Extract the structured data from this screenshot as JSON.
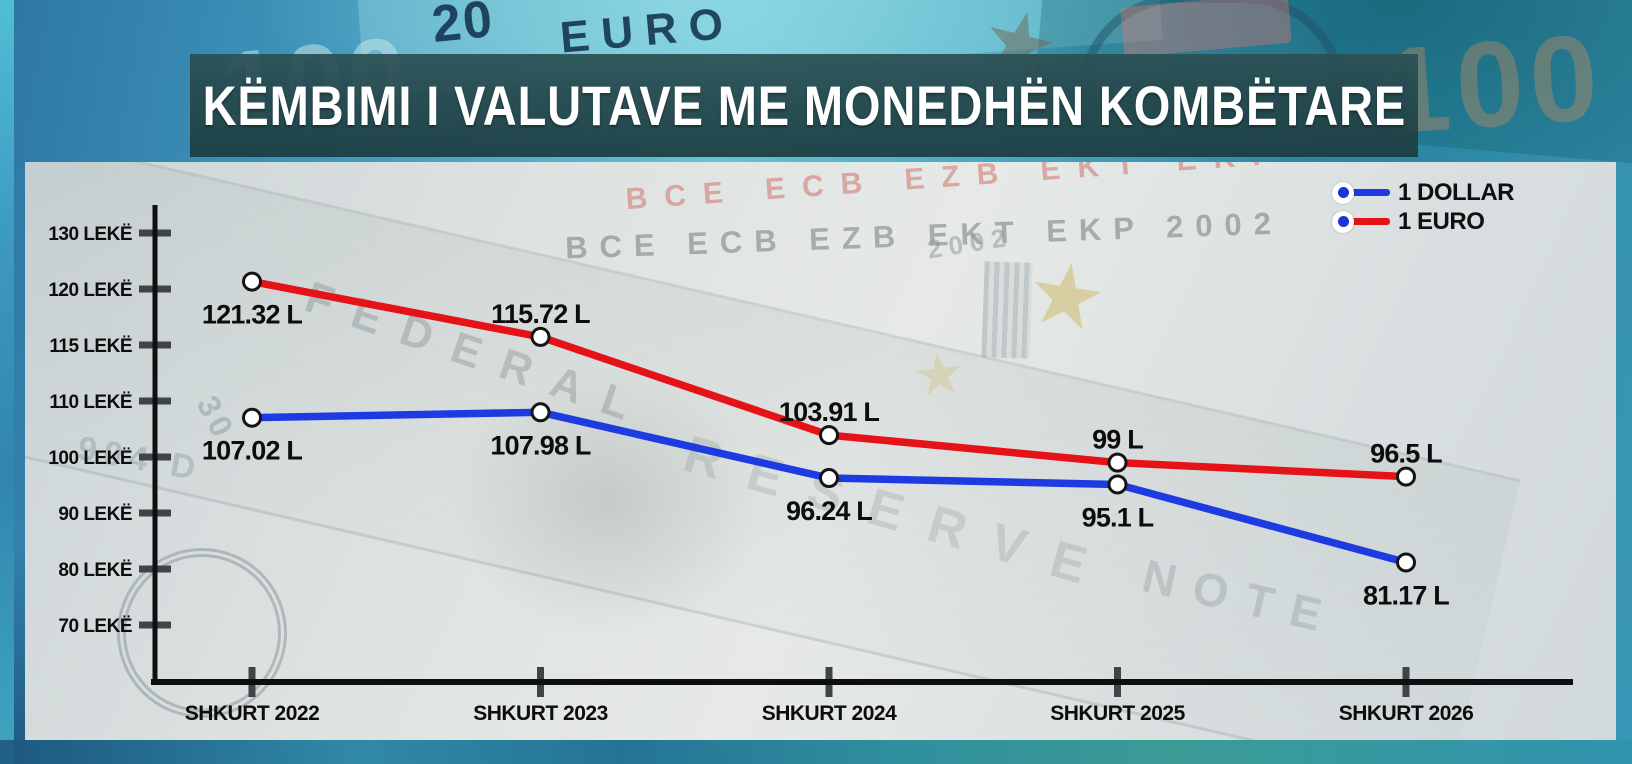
{
  "header": {
    "title": "KËMBIMI I VALUTAVE ME MONEDHËN KOMBËTARE"
  },
  "legend": {
    "position": "top-right",
    "marker_dot_color": "#1c33d6",
    "items": [
      {
        "label": "1 DOLLAR",
        "color": "#1d3be0"
      },
      {
        "label": "1 EURO",
        "color": "#e51318"
      }
    ]
  },
  "chart_data": {
    "type": "line",
    "title": "KËMBIMI I VALUTAVE ME MONEDHËN KOMBËTARE",
    "unit": "LEKË",
    "categories": [
      "SHKURT 2022",
      "SHKURT 2023",
      "SHKURT 2024",
      "SHKURT 2025",
      "SHKURT 2026"
    ],
    "series": [
      {
        "name": "1 DOLLAR",
        "color": "#1d3be0",
        "values": [
          107.02,
          107.98,
          96.24,
          95.1,
          81.17
        ],
        "point_labels": [
          "107.02 L",
          "107.98 L",
          "96.24 L",
          "95.1 L",
          "81.17 L"
        ],
        "label_placement": [
          "below",
          "below",
          "below",
          "below",
          "below"
        ]
      },
      {
        "name": "1 EURO",
        "color": "#e51318",
        "values": [
          121.32,
          115.72,
          103.91,
          99,
          96.5
        ],
        "point_labels": [
          "121.32 L",
          "115.72 L",
          "103.91 L",
          "99 L",
          "96.5 L"
        ],
        "label_placement": [
          "below",
          "above",
          "above",
          "above",
          "above"
        ]
      }
    ],
    "y_axis": {
      "tick_values": [
        130,
        120,
        115,
        110,
        100,
        90,
        80,
        70
      ],
      "tick_labels": [
        "130 LEKË",
        "120 LEKË",
        "115 LEKË",
        "110 LEKË",
        "100 LEKË",
        "90 LEKË",
        "80 LEKË",
        "70 LEKË"
      ],
      "scale_note": "ticks drawn equally spaced (non-linear value scale as in original)"
    },
    "grid": false,
    "legend_position": "top-right",
    "marker_style": {
      "fill": "#ffffff",
      "stroke": "#141414"
    }
  },
  "background": {
    "watermarks": {
      "bce_row_red": "BCE ECB EZB EKT EKP",
      "bce_row_gray": "BCE ECB EZB EKT EKP 2002",
      "year": "2002",
      "federal": "FEDERAL",
      "reserve": "RESERVE",
      "note": "NOTE",
      "serial_a": "30",
      "serial_b": "904 D",
      "euro_text": "EURO",
      "twenty": "20",
      "hundred": "100",
      "star": "★"
    }
  }
}
